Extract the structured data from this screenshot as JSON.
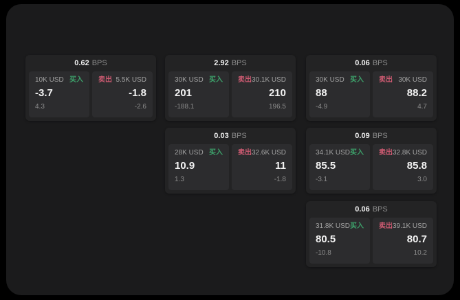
{
  "theme": {
    "background": "#000000",
    "panel": "#1b1b1c",
    "card": "#232324",
    "quote_panel": "#2c2c2e",
    "buy_color": "#3da06a",
    "sell_color": "#cc5a71",
    "text_primary": "#f2f2f2",
    "text_muted": "#8b8b8b"
  },
  "cards": [
    {
      "bps_value": "0.62",
      "bps_unit": "BPS",
      "row": 1,
      "col": 1,
      "buy": {
        "size": "10K USD",
        "side_label": "买入",
        "price": "-3.7",
        "delta": "4.3"
      },
      "sell": {
        "size": "5.5K USD",
        "side_label": "卖出",
        "price": "-1.8",
        "delta": "-2.6"
      }
    },
    {
      "bps_value": "2.92",
      "bps_unit": "BPS",
      "row": 1,
      "col": 2,
      "buy": {
        "size": "30K USD",
        "side_label": "买入",
        "price": "201",
        "delta": "-188.1"
      },
      "sell": {
        "size": "30.1K USD",
        "side_label": "卖出",
        "price": "210",
        "delta": "196.5"
      }
    },
    {
      "bps_value": "0.06",
      "bps_unit": "BPS",
      "row": 1,
      "col": 3,
      "buy": {
        "size": "30K USD",
        "side_label": "买入",
        "price": "88",
        "delta": "-4.9"
      },
      "sell": {
        "size": "30K USD",
        "side_label": "卖出",
        "price": "88.2",
        "delta": "4.7"
      }
    },
    {
      "bps_value": "0.03",
      "bps_unit": "BPS",
      "row": 2,
      "col": 2,
      "buy": {
        "size": "28K USD",
        "side_label": "买入",
        "price": "10.9",
        "delta": "1.3"
      },
      "sell": {
        "size": "32.6K USD",
        "side_label": "卖出",
        "price": "11",
        "delta": "-1.8"
      }
    },
    {
      "bps_value": "0.09",
      "bps_unit": "BPS",
      "row": 2,
      "col": 3,
      "buy": {
        "size": "34.1K USD",
        "side_label": "买入",
        "price": "85.5",
        "delta": "-3.1"
      },
      "sell": {
        "size": "32.8K USD",
        "side_label": "卖出",
        "price": "85.8",
        "delta": "3.0"
      }
    },
    {
      "bps_value": "0.06",
      "bps_unit": "BPS",
      "row": 3,
      "col": 3,
      "buy": {
        "size": "31.8K USD",
        "side_label": "买入",
        "price": "80.5",
        "delta": "-10.8"
      },
      "sell": {
        "size": "39.1K USD",
        "side_label": "卖出",
        "price": "80.7",
        "delta": "10.2"
      }
    }
  ]
}
